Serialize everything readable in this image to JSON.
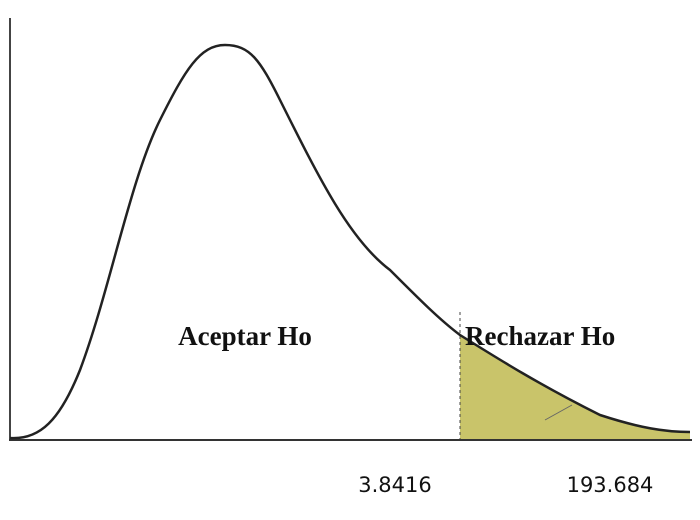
{
  "regions": [
    {
      "label": "Aceptar Ho"
    },
    {
      "label": "Rechazar Ho"
    }
  ],
  "critical_value": 3.8416,
  "statistic": 193.684
}
